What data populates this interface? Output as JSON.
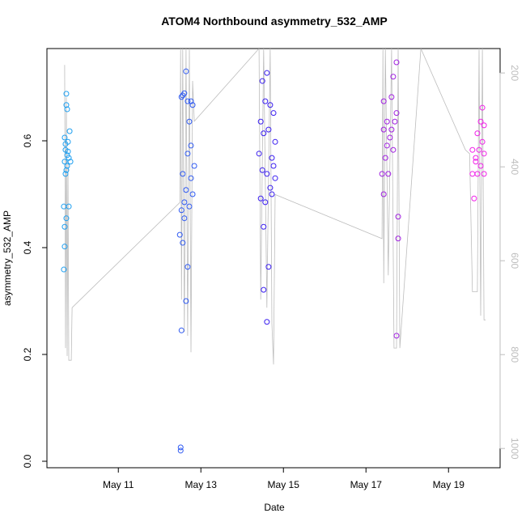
{
  "chart_data": {
    "type": "scatter",
    "title": "ATOM4 Northbound asymmetry_532_AMP",
    "x_label": "Date",
    "y_label": "asymmetry_532_AMP",
    "xlim": [
      9.27,
      20.25
    ],
    "xticks": [
      {
        "value": 11,
        "label": "May 11"
      },
      {
        "value": 13,
        "label": "May 13"
      },
      {
        "value": 15,
        "label": "May 15"
      },
      {
        "value": 17,
        "label": "May 17"
      },
      {
        "value": 19,
        "label": "May 19"
      }
    ],
    "ylim": [
      -0.0121,
      0.7727
    ],
    "yticks": [
      {
        "value": 0,
        "label": "0.0"
      },
      0.2,
      0.4,
      0.6
    ],
    "y2lim": [
      1041,
      148
    ],
    "y2ticks": [
      200,
      400,
      600,
      800,
      1000
    ],
    "series": [
      {
        "color": "#1e9ff0",
        "x": [
          9.74,
          9.74,
          9.76,
          9.7,
          9.78,
          9.82,
          9.72,
          9.76,
          9.8,
          9.84,
          9.7,
          9.74,
          9.72,
          9.76,
          9.68,
          9.8,
          9.74,
          9.7,
          9.7,
          9.68,
          9.72,
          9.78
        ],
        "values": [
          0.688,
          0.667,
          0.659,
          0.606,
          0.598,
          0.618,
          0.583,
          0.573,
          0.568,
          0.561,
          0.561,
          0.545,
          0.538,
          0.553,
          0.477,
          0.477,
          0.455,
          0.439,
          0.402,
          0.359,
          0.594,
          0.58
        ]
      },
      {
        "color": "#2f5af2",
        "x": [
          12.53,
          12.6,
          12.68,
          12.76,
          12.64,
          12.56,
          12.8,
          12.72,
          12.76,
          12.68,
          12.84,
          12.56,
          12.64,
          12.6,
          12.53,
          12.8,
          12.72,
          12.49,
          12.56,
          12.68,
          12.64,
          12.53,
          12.51,
          12.51,
          12.76,
          12.6
        ],
        "values": [
          0.682,
          0.689,
          0.674,
          0.674,
          0.73,
          0.685,
          0.667,
          0.636,
          0.591,
          0.576,
          0.553,
          0.538,
          0.508,
          0.485,
          0.47,
          0.5,
          0.477,
          0.424,
          0.409,
          0.364,
          0.3,
          0.245,
          0.026,
          0.02,
          0.53,
          0.455
        ]
      },
      {
        "color": "#3a1ef0",
        "x": [
          14.49,
          14.6,
          14.56,
          14.68,
          14.45,
          14.76,
          14.52,
          14.64,
          14.8,
          14.41,
          14.72,
          14.49,
          14.6,
          14.76,
          14.45,
          14.56,
          14.68,
          14.52,
          14.64,
          14.52,
          14.6,
          14.8,
          14.72
        ],
        "values": [
          0.712,
          0.727,
          0.674,
          0.667,
          0.636,
          0.652,
          0.614,
          0.621,
          0.598,
          0.576,
          0.568,
          0.545,
          0.538,
          0.553,
          0.492,
          0.485,
          0.512,
          0.439,
          0.364,
          0.321,
          0.261,
          0.53,
          0.5
        ]
      },
      {
        "color": "#a020e0",
        "x": [
          17.74,
          17.43,
          17.66,
          17.62,
          17.51,
          17.7,
          17.43,
          17.58,
          17.74,
          17.47,
          17.66,
          17.39,
          17.54,
          17.43,
          17.78,
          17.78,
          17.74,
          17.62,
          17.51
        ],
        "values": [
          0.747,
          0.674,
          0.72,
          0.682,
          0.636,
          0.636,
          0.621,
          0.606,
          0.652,
          0.568,
          0.583,
          0.538,
          0.538,
          0.5,
          0.458,
          0.417,
          0.235,
          0.621,
          0.591
        ]
      },
      {
        "color": "#f020e8",
        "x": [
          19.82,
          19.78,
          19.86,
          19.7,
          19.82,
          19.74,
          19.58,
          19.86,
          19.66,
          19.78,
          19.58,
          19.7,
          19.86,
          19.62,
          19.66
        ],
        "values": [
          0.662,
          0.636,
          0.629,
          0.614,
          0.598,
          0.583,
          0.583,
          0.576,
          0.561,
          0.553,
          0.538,
          0.538,
          0.538,
          0.492,
          0.568
        ]
      },
      {
        "axis": "y2",
        "color": "#bdbdbd",
        "x": [
          9.7,
          9.72,
          9.74,
          9.76,
          9.78,
          9.8,
          9.82,
          9.86,
          9.88,
          12.49,
          12.51,
          12.53,
          12.56,
          12.6,
          12.64,
          12.68,
          12.72,
          12.76,
          12.8,
          12.84,
          14.41,
          14.45,
          14.52,
          14.6,
          14.68,
          14.72,
          14.76,
          14.8,
          17.39,
          17.41,
          17.43,
          17.47,
          17.54,
          17.62,
          17.68,
          17.74,
          17.78,
          17.82,
          18.33,
          19.41,
          19.51,
          19.58,
          19.7,
          19.74,
          19.78,
          19.82,
          19.86,
          19.9
        ],
        "values": [
          183,
          786,
          252,
          803,
          390,
          812,
          812,
          812,
          700,
          476,
          148,
          683,
          148,
          752,
          148,
          760,
          148,
          795,
          217,
          303,
          148,
          683,
          148,
          700,
          148,
          734,
          821,
          459,
          553,
          148,
          648,
          148,
          631,
          148,
          786,
          786,
          148,
          786,
          148,
          364,
          372,
          666,
          666,
          148,
          717,
          148,
          726,
          726
        ]
      }
    ]
  }
}
